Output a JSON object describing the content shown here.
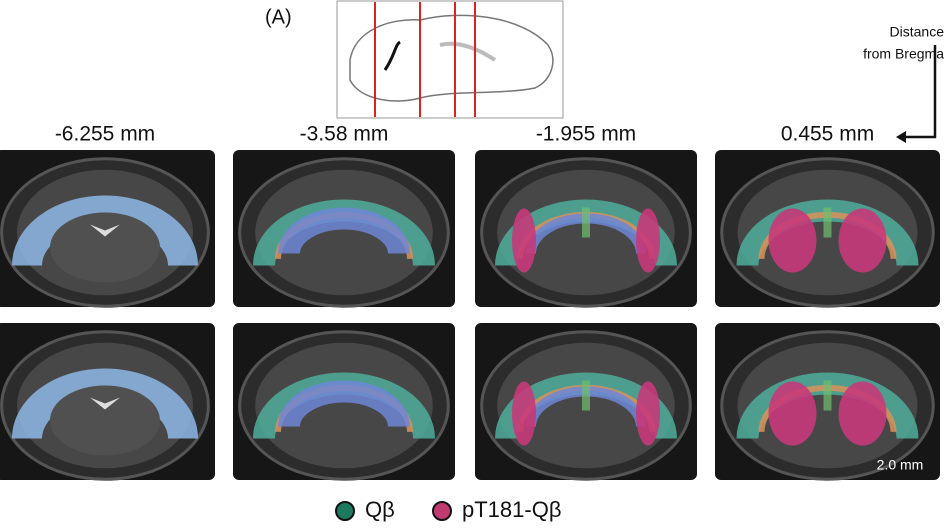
{
  "panel_label": "(A)",
  "distance_label": [
    "Distance",
    "from Bregma"
  ],
  "columns": [
    "-6.255 mm",
    "-3.58 mm",
    "-1.955 mm",
    "0.455 mm"
  ],
  "scale_bar": "2.0 mm",
  "legend": [
    {
      "label": "Qβ",
      "color": "#1e7a5e"
    },
    {
      "label": "pT181-Qβ",
      "color": "#c23a72"
    }
  ]
}
